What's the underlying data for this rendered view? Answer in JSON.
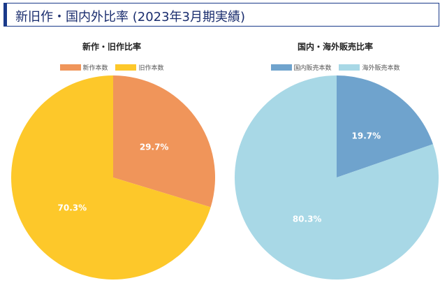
{
  "header": {
    "title": "新旧作・国内外比率 (2023年3月期実績)"
  },
  "chart_data": [
    {
      "type": "pie",
      "title": "新作・旧作比率",
      "categories": [
        "新作本数",
        "旧作本数"
      ],
      "values": [
        29.7,
        70.3
      ],
      "labels": [
        "29.7%",
        "70.3%"
      ],
      "colors": [
        "#f0955a",
        "#fdc82a"
      ],
      "legend_position": "top"
    },
    {
      "type": "pie",
      "title": "国内・海外販売比率",
      "categories": [
        "国内販売本数",
        "海外販売本数"
      ],
      "values": [
        19.7,
        80.3
      ],
      "labels": [
        "19.7%",
        "80.3%"
      ],
      "colors": [
        "#6fa3cd",
        "#a8d8e6"
      ],
      "legend_position": "top"
    }
  ]
}
